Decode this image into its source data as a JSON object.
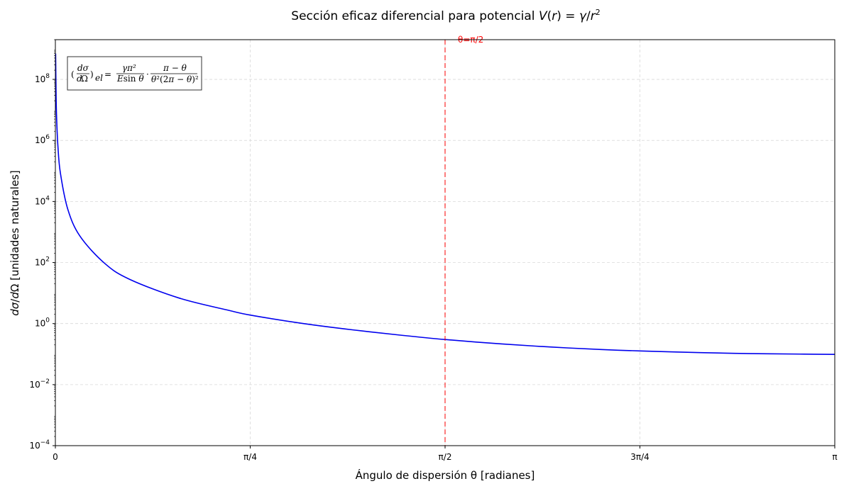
{
  "chart_data": {
    "type": "line",
    "title": "Sección eficaz diferencial para potencial V(r) = γ/r²",
    "xlabel": "Ángulo de dispersión θ [radianes]",
    "ylabel": "dσ/dΩ [unidades naturales]",
    "x_scale": "linear",
    "y_scale": "log",
    "xlim": [
      0,
      3.14159265
    ],
    "ylim": [
      0.0001,
      2000000000
    ],
    "grid": true,
    "x_ticks": [
      {
        "value": 0,
        "label": "0"
      },
      {
        "value": 0.78539816,
        "label": "π/4"
      },
      {
        "value": 1.57079633,
        "label": "π/2"
      },
      {
        "value": 2.35619449,
        "label": "3π/4"
      },
      {
        "value": 3.14159265,
        "label": "π"
      }
    ],
    "y_ticks": [
      {
        "value": 0.0001,
        "base": "10",
        "exp": "−4"
      },
      {
        "value": 0.01,
        "base": "10",
        "exp": "−2"
      },
      {
        "value": 1,
        "base": "10",
        "exp": "0"
      },
      {
        "value": 100,
        "base": "10",
        "exp": "2"
      },
      {
        "value": 10000,
        "base": "10",
        "exp": "4"
      },
      {
        "value": 1000000,
        "base": "10",
        "exp": "6"
      },
      {
        "value": 100000000,
        "base": "10",
        "exp": "8"
      }
    ],
    "series": [
      {
        "color": "#0000ee",
        "x": [
          0.001,
          0.003,
          0.005,
          0.01,
          0.02,
          0.05,
          0.1,
          0.2,
          0.3,
          0.5,
          0.7,
          0.785,
          1.0,
          1.2,
          1.4,
          1.571,
          1.8,
          2.0,
          2.2,
          2.356,
          2.6,
          2.8,
          3.0,
          3.1416
        ],
        "y": [
          700000000,
          26000000,
          5600000,
          700000,
          88000,
          5600,
          715,
          92,
          28,
          6.8,
          2.7,
          1.9,
          1.0,
          0.62,
          0.41,
          0.3,
          0.215,
          0.17,
          0.141,
          0.127,
          0.112,
          0.104,
          0.1,
          0.098
        ]
      }
    ],
    "annotations": [
      {
        "type": "vline",
        "x": 1.57079633,
        "color": "#ff0000",
        "style": "dashed",
        "label": "θ=π/2"
      }
    ],
    "formula_box": "(dσ/dΩ)_el = γπ² / (E sin θ) · (π − θ) / (θ²(2π − θ)²)",
    "legend": "none"
  }
}
